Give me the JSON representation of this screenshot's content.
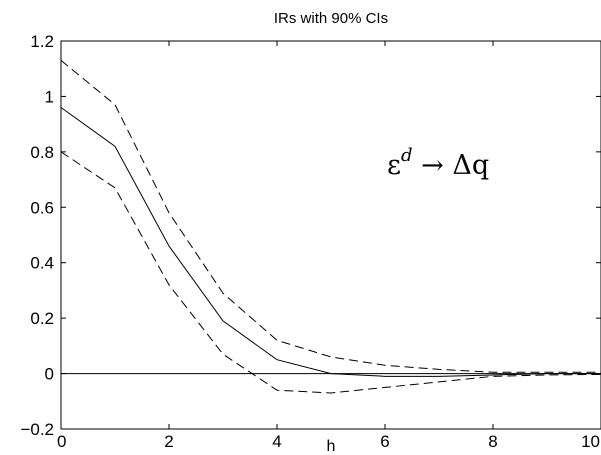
{
  "chart_data": {
    "type": "line",
    "title": "IRs with 90% CIs",
    "xlabel": "h",
    "ylabel": "",
    "xlim": [
      0,
      10
    ],
    "ylim": [
      -0.2,
      1.2
    ],
    "xticks": [
      0,
      2,
      4,
      6,
      8,
      10
    ],
    "xtick_labels": [
      "0",
      "2",
      "4",
      "6",
      "8",
      "10"
    ],
    "yticks": [
      -0.2,
      0,
      0.2,
      0.4,
      0.6,
      0.8,
      1,
      1.2
    ],
    "ytick_labels": [
      "−0.2",
      "0",
      "0.2",
      "0.4",
      "0.6",
      "0.8",
      "1",
      "1.2"
    ],
    "grid": false,
    "annotation": {
      "base": "ε",
      "superscript": "d",
      "rest": " → Δq"
    },
    "x": [
      0,
      1,
      2,
      3,
      4,
      5,
      6,
      7,
      8,
      9,
      10
    ],
    "series": [
      {
        "style": "solid",
        "values": [
          0.96,
          0.82,
          0.46,
          0.19,
          0.05,
          0.0,
          -0.01,
          -0.01,
          -0.005,
          0.0,
          0.0
        ]
      },
      {
        "style": "dashed",
        "values": [
          1.13,
          0.97,
          0.58,
          0.29,
          0.12,
          0.06,
          0.03,
          0.015,
          0.005,
          0.005,
          0.005
        ]
      },
      {
        "style": "dashed",
        "values": [
          0.8,
          0.67,
          0.32,
          0.07,
          -0.06,
          -0.07,
          -0.05,
          -0.03,
          -0.01,
          -0.005,
          -0.003
        ]
      }
    ],
    "reference_line": {
      "y": 0,
      "style": "solid"
    }
  }
}
